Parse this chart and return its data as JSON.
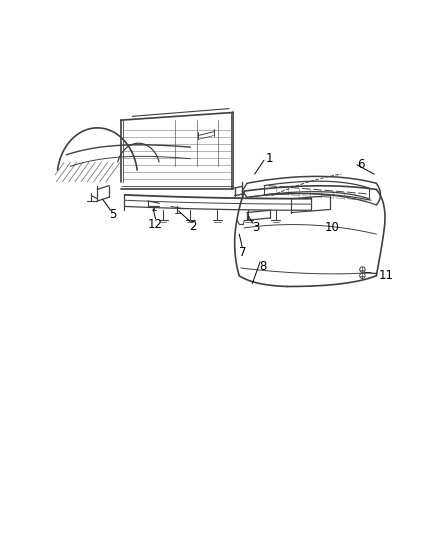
{
  "background_color": "#ffffff",
  "line_color": "#404040",
  "label_color": "#000000",
  "fig_width": 4.38,
  "fig_height": 5.33,
  "dpi": 100,
  "label_fontsize": 8.5
}
